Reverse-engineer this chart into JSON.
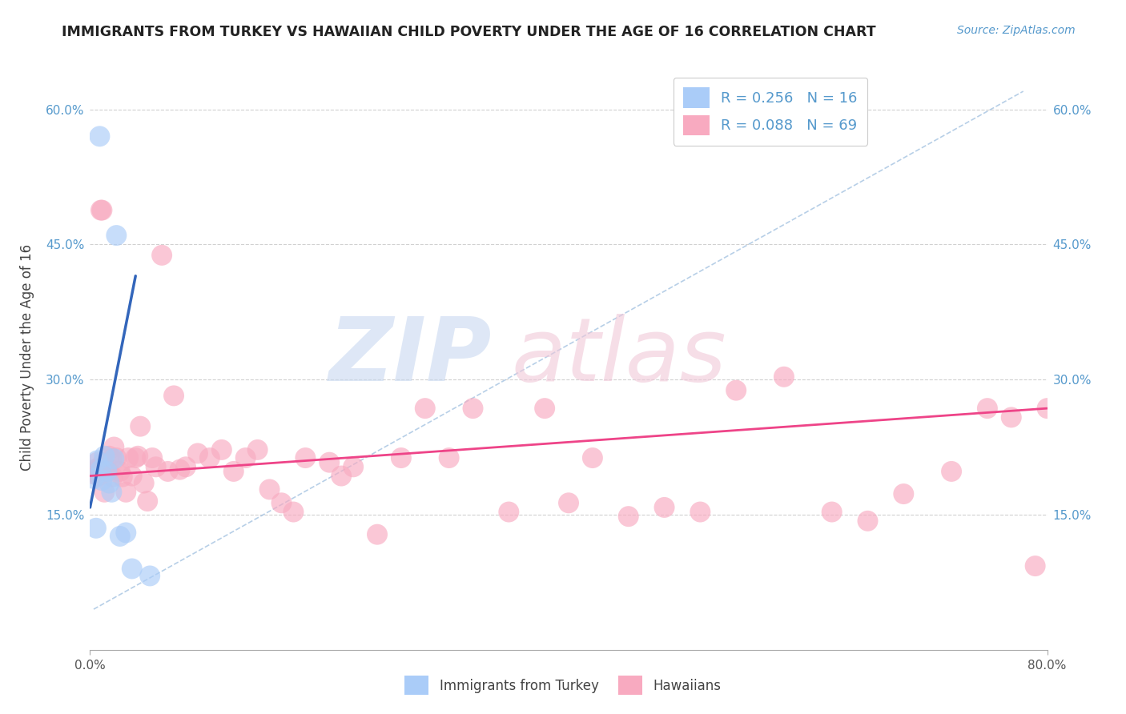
{
  "title": "IMMIGRANTS FROM TURKEY VS HAWAIIAN CHILD POVERTY UNDER THE AGE OF 16 CORRELATION CHART",
  "source": "Source: ZipAtlas.com",
  "ylabel": "Child Poverty Under the Age of 16",
  "xlim": [
    0.0,
    0.8
  ],
  "ylim": [
    0.0,
    0.65
  ],
  "ytick_positions": [
    0.15,
    0.3,
    0.45,
    0.6
  ],
  "ytick_labels": [
    "15.0%",
    "30.0%",
    "45.0%",
    "60.0%"
  ],
  "xtick_positions": [
    0.0,
    0.8
  ],
  "xtick_labels": [
    "0.0%",
    "80.0%"
  ],
  "turkey_color": "#aaccf8",
  "hawaii_color": "#f8aac0",
  "turkey_line_color": "#3366bb",
  "hawaii_line_color": "#ee4488",
  "tick_color": "#5599cc",
  "title_color": "#222222",
  "source_color": "#5599cc",
  "turkey_x": [
    0.003,
    0.005,
    0.006,
    0.008,
    0.009,
    0.01,
    0.012,
    0.014,
    0.016,
    0.018,
    0.02,
    0.022,
    0.025,
    0.03,
    0.035,
    0.05
  ],
  "turkey_y": [
    0.19,
    0.135,
    0.21,
    0.57,
    0.2,
    0.188,
    0.215,
    0.198,
    0.185,
    0.175,
    0.212,
    0.46,
    0.126,
    0.13,
    0.09,
    0.082
  ],
  "hawaii_x": [
    0.003,
    0.004,
    0.005,
    0.006,
    0.007,
    0.008,
    0.009,
    0.01,
    0.011,
    0.012,
    0.013,
    0.015,
    0.016,
    0.018,
    0.019,
    0.02,
    0.022,
    0.025,
    0.027,
    0.03,
    0.032,
    0.035,
    0.038,
    0.04,
    0.042,
    0.045,
    0.048,
    0.052,
    0.055,
    0.06,
    0.065,
    0.07,
    0.075,
    0.08,
    0.09,
    0.1,
    0.11,
    0.12,
    0.13,
    0.14,
    0.15,
    0.16,
    0.17,
    0.18,
    0.2,
    0.21,
    0.22,
    0.24,
    0.26,
    0.28,
    0.3,
    0.32,
    0.35,
    0.38,
    0.4,
    0.42,
    0.45,
    0.48,
    0.51,
    0.54,
    0.58,
    0.62,
    0.65,
    0.68,
    0.72,
    0.75,
    0.77,
    0.79,
    0.8
  ],
  "hawaii_y": [
    0.195,
    0.2,
    0.198,
    0.208,
    0.193,
    0.203,
    0.488,
    0.488,
    0.208,
    0.175,
    0.2,
    0.198,
    0.215,
    0.212,
    0.192,
    0.225,
    0.213,
    0.198,
    0.192,
    0.175,
    0.213,
    0.193,
    0.213,
    0.215,
    0.248,
    0.185,
    0.165,
    0.213,
    0.203,
    0.438,
    0.198,
    0.282,
    0.2,
    0.203,
    0.218,
    0.213,
    0.222,
    0.198,
    0.213,
    0.222,
    0.178,
    0.163,
    0.153,
    0.213,
    0.208,
    0.193,
    0.203,
    0.128,
    0.213,
    0.268,
    0.213,
    0.268,
    0.153,
    0.268,
    0.163,
    0.213,
    0.148,
    0.158,
    0.153,
    0.288,
    0.303,
    0.153,
    0.143,
    0.173,
    0.198,
    0.268,
    0.258,
    0.093,
    0.268
  ],
  "turkey_line_x": [
    0.0,
    0.038
  ],
  "turkey_line_y": [
    0.158,
    0.415
  ],
  "hawaii_line_x": [
    0.0,
    0.8
  ],
  "hawaii_line_y": [
    0.193,
    0.268
  ],
  "dash_line_x": [
    0.003,
    0.78
  ],
  "dash_line_y": [
    0.045,
    0.62
  ]
}
